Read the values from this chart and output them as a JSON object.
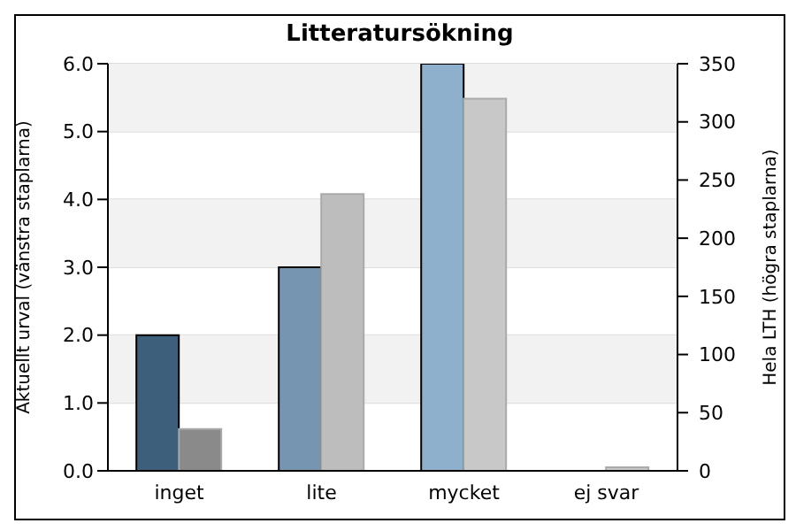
{
  "chart_data": {
    "type": "bar",
    "title": "Litteratursökning",
    "ylabel": "Aktuellt urval (vänstra staplarna)",
    "y2label": "Hela LTH (högra staplarna)",
    "categories": [
      "inget",
      "lite",
      "mycket",
      "ej svar"
    ],
    "series": [
      {
        "colors": [
          "#3e5f7c",
          "#7595b0",
          "#8fb0cc",
          "#8fb0cc"
        ],
        "values": [
          2,
          3,
          6,
          0
        ]
      },
      {
        "axis": "y2",
        "colors": [
          "#8a8a8a",
          "#bdbdbd",
          "#c8c8c8",
          "#c8c8c8"
        ],
        "values": [
          36,
          238,
          320,
          3
        ]
      }
    ],
    "ylim": [
      0,
      6
    ],
    "yticks": [
      {
        "value": 0,
        "label": "0.0"
      },
      {
        "value": 1,
        "label": "1.0"
      },
      {
        "value": 2,
        "label": "2.0"
      },
      {
        "value": 3,
        "label": "3.0"
      },
      {
        "value": 4,
        "label": "4.0"
      },
      {
        "value": 5,
        "label": "5.0"
      },
      {
        "value": 6,
        "label": "6.0"
      }
    ],
    "y2lim": [
      0,
      350
    ],
    "y2ticks": [
      0,
      50,
      100,
      150,
      200,
      250,
      300,
      350
    ],
    "grid": "y",
    "legend": false
  }
}
